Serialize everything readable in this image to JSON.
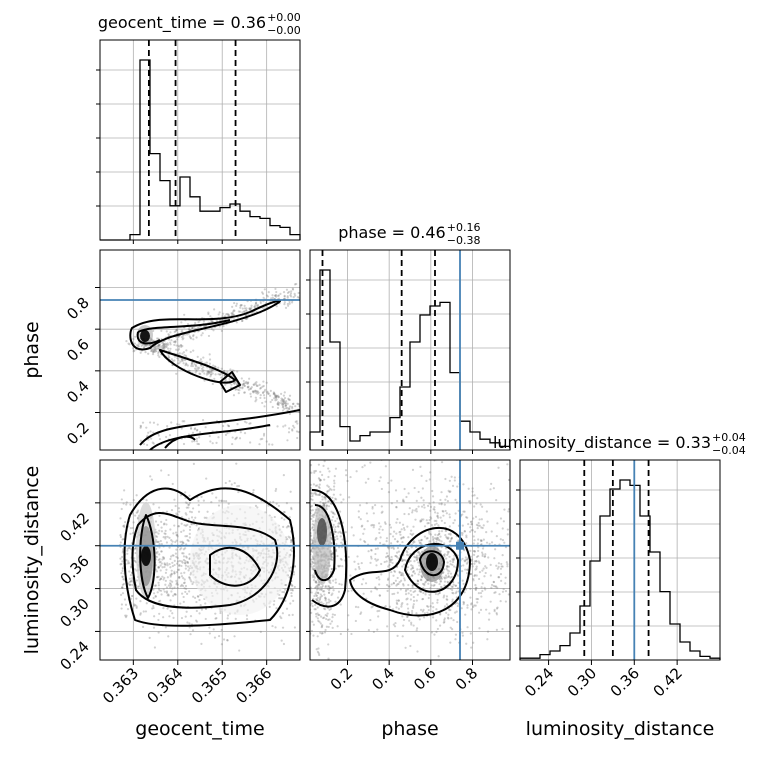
{
  "chart_data": {
    "type": "corner",
    "colors": {
      "line": "#000000",
      "grid": "#b0b0b0",
      "truth": "#4682b4",
      "points": "#7a7a7a"
    },
    "parameters": [
      {
        "name": "geocent_time",
        "axis_label": "geocent_time",
        "title": "geocent_time = 0.36",
        "title_sup": "+0.00",
        "title_sub": "−0.00",
        "range": [
          0.36225,
          0.36675
        ],
        "ticks": [
          0.363,
          0.364,
          0.365,
          0.366
        ],
        "tick_labels": [
          "0.363",
          "0.364",
          "0.365",
          "0.366"
        ],
        "quantiles": [
          0.36335,
          0.36395,
          0.3653
        ],
        "truth": null
      },
      {
        "name": "phase",
        "axis_label": "phase",
        "title": "phase = 0.46",
        "title_sup": "+0.16",
        "title_sub": "−0.38",
        "range": [
          0.02,
          0.98
        ],
        "ticks": [
          0.2,
          0.4,
          0.6,
          0.8
        ],
        "tick_labels": [
          "0.2",
          "0.4",
          "0.6",
          "0.8"
        ],
        "quantiles": [
          0.08,
          0.46,
          0.62
        ],
        "truth": 0.74
      },
      {
        "name": "luminosity_distance",
        "axis_label": "luminosity_distance",
        "title": "luminosity_distance = 0.33",
        "title_sup": "+0.04",
        "title_sub": "−0.04",
        "range": [
          0.2,
          0.48
        ],
        "ticks": [
          0.24,
          0.3,
          0.36,
          0.42
        ],
        "tick_labels": [
          "0.24",
          "0.30",
          "0.36",
          "0.42"
        ],
        "quantiles": [
          0.29,
          0.33,
          0.38
        ],
        "truth": 0.36
      }
    ],
    "histograms": {
      "geocent_time": [
        0,
        0,
        0,
        3,
        100,
        48,
        33,
        19,
        35,
        24,
        16,
        16,
        18,
        20,
        16,
        13,
        12,
        8,
        7,
        3
      ],
      "phase": [
        10,
        100,
        60,
        13,
        5,
        8,
        10,
        10,
        18,
        35,
        60,
        75,
        80,
        82,
        43,
        16,
        10,
        6,
        4,
        2
      ],
      "luminosity_distance": [
        1,
        1,
        3,
        5,
        8,
        15,
        30,
        55,
        80,
        95,
        100,
        97,
        80,
        60,
        38,
        20,
        10,
        5,
        2,
        1
      ]
    }
  }
}
